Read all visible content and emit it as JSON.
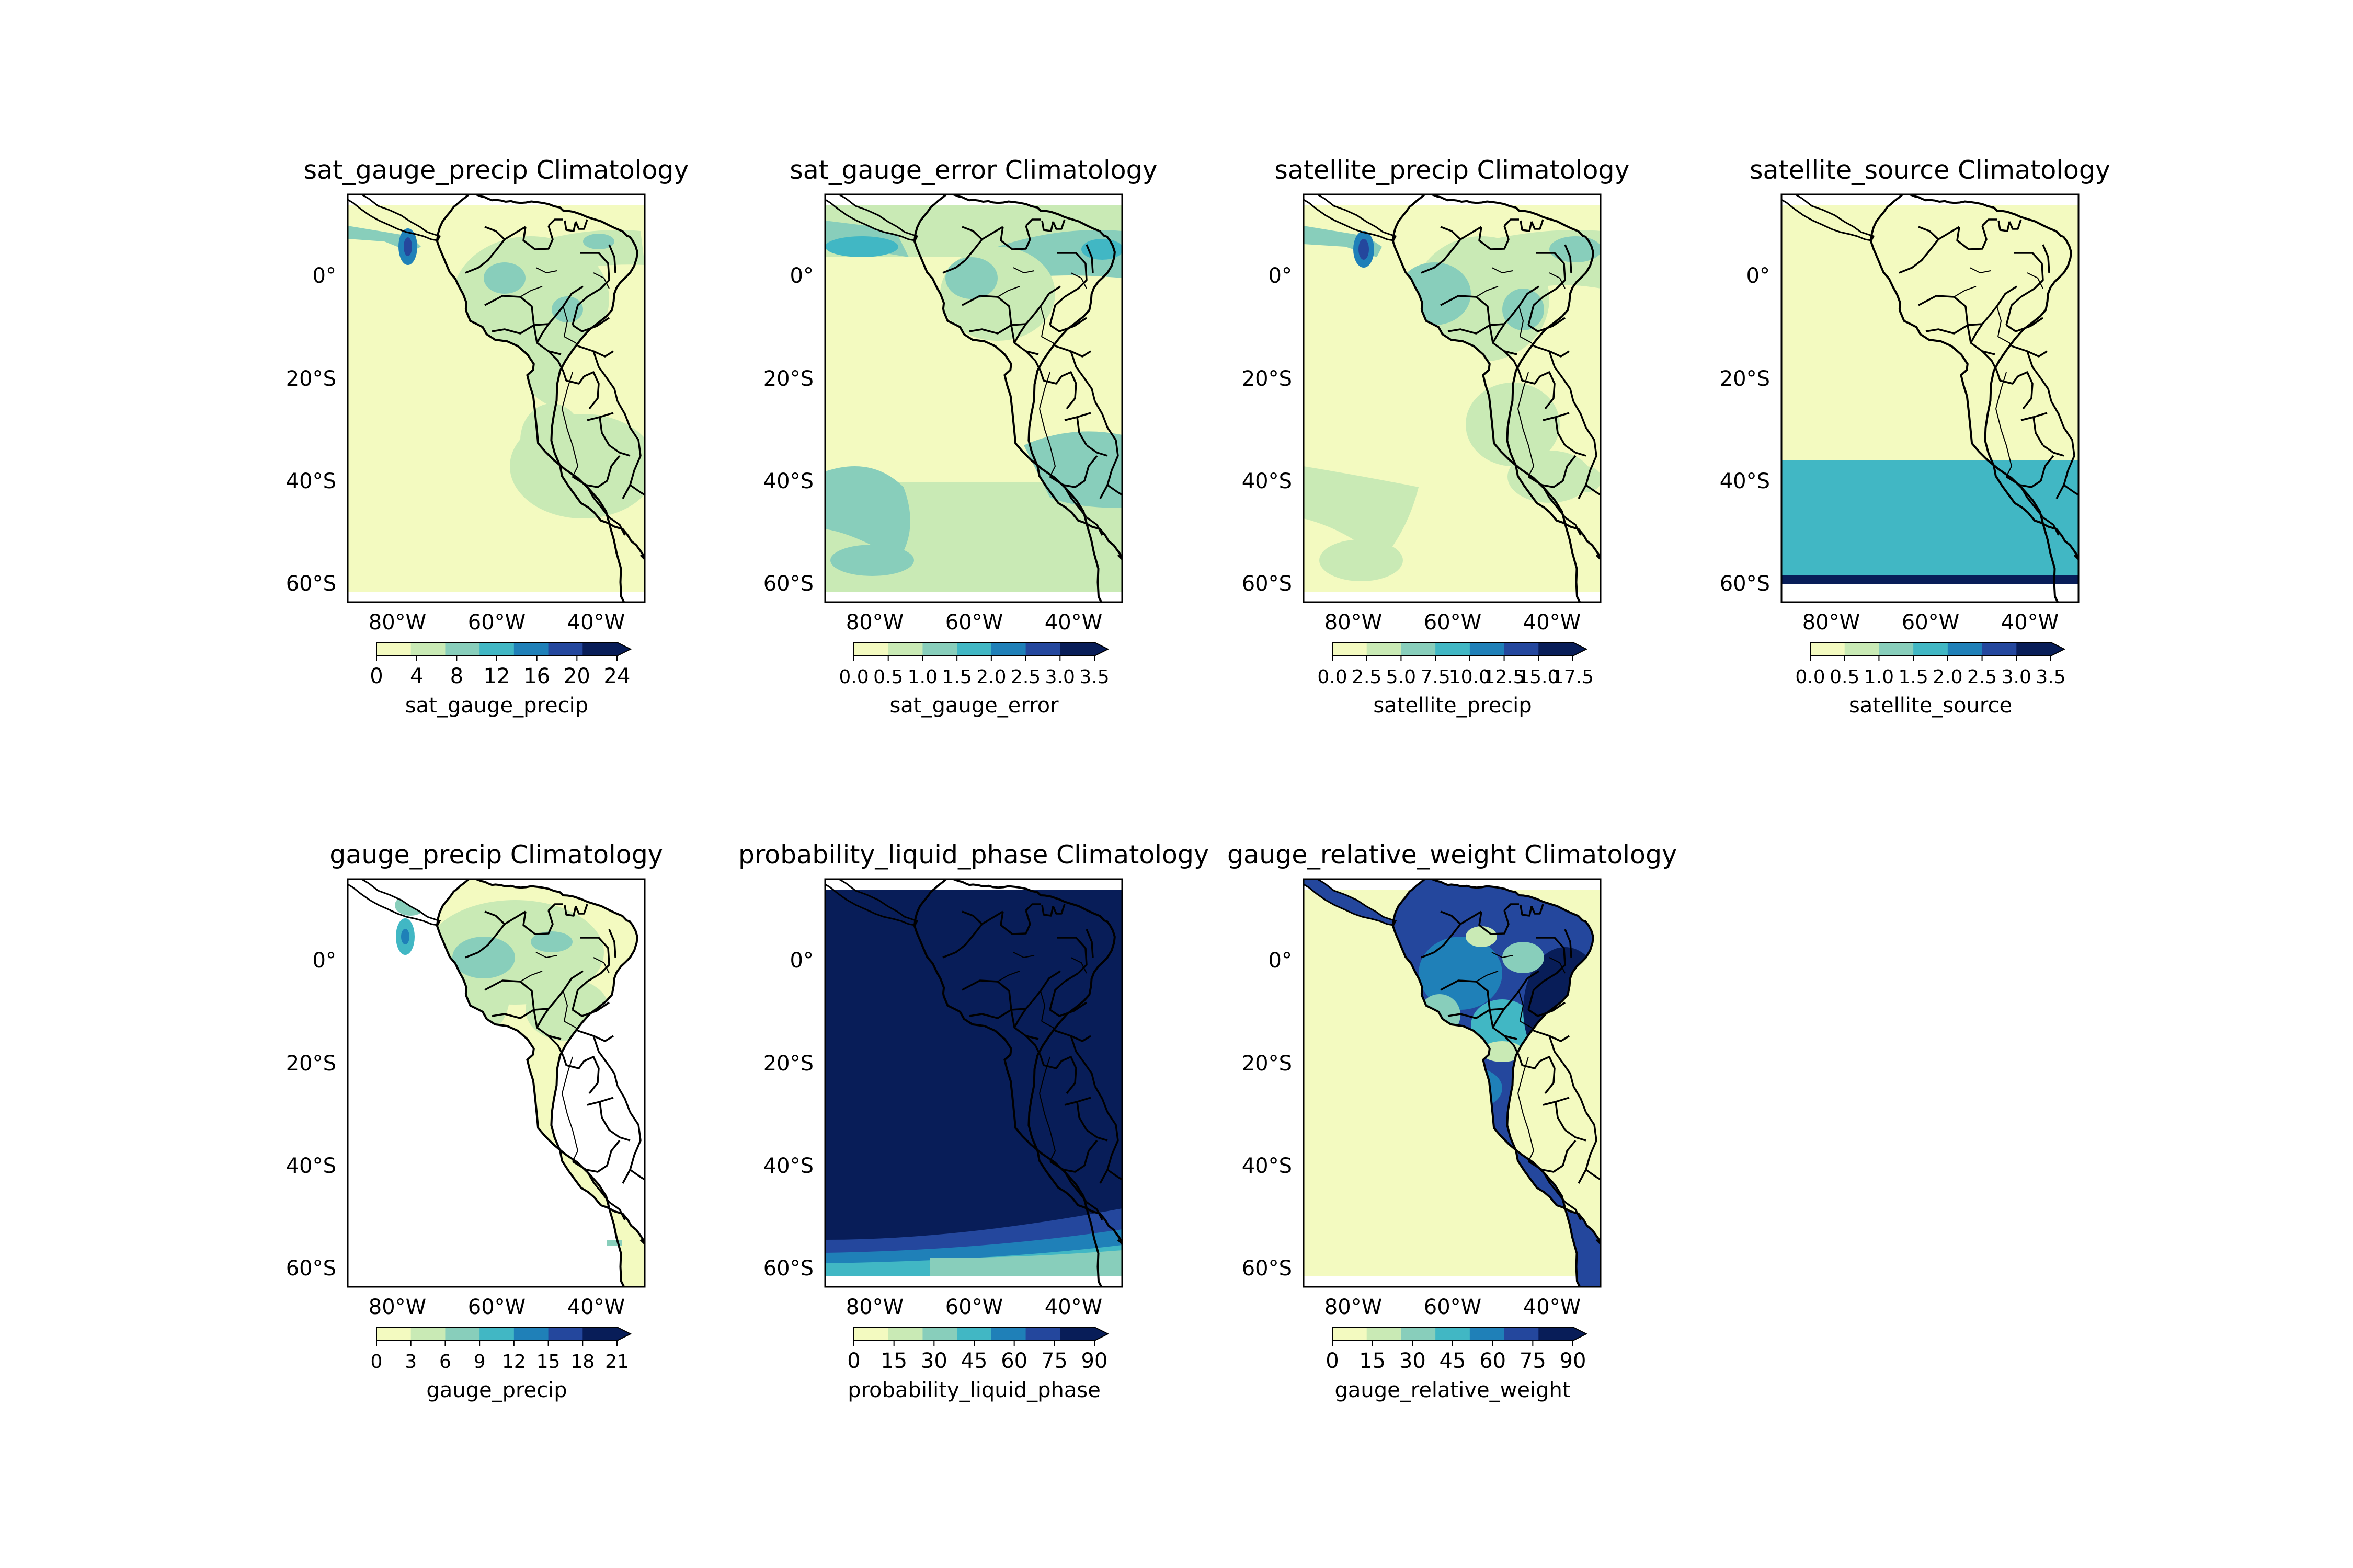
{
  "figure": {
    "panels": [
      {
        "title": "sat_gauge_precip Climatology",
        "colorbar_label": "sat_gauge_precip",
        "colorbar_ticks": [
          "0",
          "4",
          "8",
          "12",
          "16",
          "20",
          "24"
        ],
        "lat_ticks": [
          "0°",
          "20°S",
          "40°S",
          "60°S"
        ],
        "lon_ticks": [
          "80°W",
          "60°W",
          "40°W"
        ],
        "pattern": "sat_gauge_precip"
      },
      {
        "title": "sat_gauge_error Climatology",
        "colorbar_label": "sat_gauge_error",
        "colorbar_ticks": [
          "0.0",
          "0.5",
          "1.0",
          "1.5",
          "2.0",
          "2.5",
          "3.0",
          "3.5"
        ],
        "lat_ticks": [
          "0°",
          "20°S",
          "40°S",
          "60°S"
        ],
        "lon_ticks": [
          "80°W",
          "60°W",
          "40°W"
        ],
        "pattern": "sat_gauge_error"
      },
      {
        "title": "satellite_precip Climatology",
        "colorbar_label": "satellite_precip",
        "colorbar_ticks": [
          "0.0",
          "2.5",
          "5.0",
          "7.5",
          "10.0",
          "12.5",
          "15.0",
          "17.5"
        ],
        "lat_ticks": [
          "0°",
          "20°S",
          "40°S",
          "60°S"
        ],
        "lon_ticks": [
          "80°W",
          "60°W",
          "40°W"
        ],
        "pattern": "satellite_precip"
      },
      {
        "title": "satellite_source Climatology",
        "colorbar_label": "satellite_source",
        "colorbar_ticks": [
          "0.0",
          "0.5",
          "1.0",
          "1.5",
          "2.0",
          "2.5",
          "3.0",
          "3.5"
        ],
        "lat_ticks": [
          "0°",
          "20°S",
          "40°S",
          "60°S"
        ],
        "lon_ticks": [
          "80°W",
          "60°W",
          "40°W"
        ],
        "pattern": "satellite_source"
      },
      {
        "title": "gauge_precip Climatology",
        "colorbar_label": "gauge_precip",
        "colorbar_ticks": [
          "0",
          "3",
          "6",
          "9",
          "12",
          "15",
          "18",
          "21"
        ],
        "lat_ticks": [
          "0°",
          "20°S",
          "40°S",
          "60°S"
        ],
        "lon_ticks": [
          "80°W",
          "60°W",
          "40°W"
        ],
        "pattern": "gauge_precip"
      },
      {
        "title": "probability_liquid_phase Climatology",
        "colorbar_label": "probability_liquid_phase",
        "colorbar_ticks": [
          "0",
          "15",
          "30",
          "45",
          "60",
          "75",
          "90"
        ],
        "lat_ticks": [
          "0°",
          "20°S",
          "40°S",
          "60°S"
        ],
        "lon_ticks": [
          "80°W",
          "60°W",
          "40°W"
        ],
        "pattern": "probability_liquid_phase"
      },
      {
        "title": "gauge_relative_weight Climatology",
        "colorbar_label": "gauge_relative_weight",
        "colorbar_ticks": [
          "0",
          "15",
          "30",
          "45",
          "60",
          "75",
          "90"
        ],
        "lat_ticks": [
          "0°",
          "20°S",
          "40°S",
          "60°S"
        ],
        "lon_ticks": [
          "80°W",
          "60°W",
          "40°W"
        ],
        "pattern": "gauge_relative_weight"
      }
    ],
    "colormap": [
      "#f3fac0",
      "#c9eab5",
      "#88cebb",
      "#41b7c4",
      "#1f80b8",
      "#24479d",
      "#081d58"
    ],
    "colors": {
      "land_border": "#000000",
      "axes": "#000000"
    }
  }
}
